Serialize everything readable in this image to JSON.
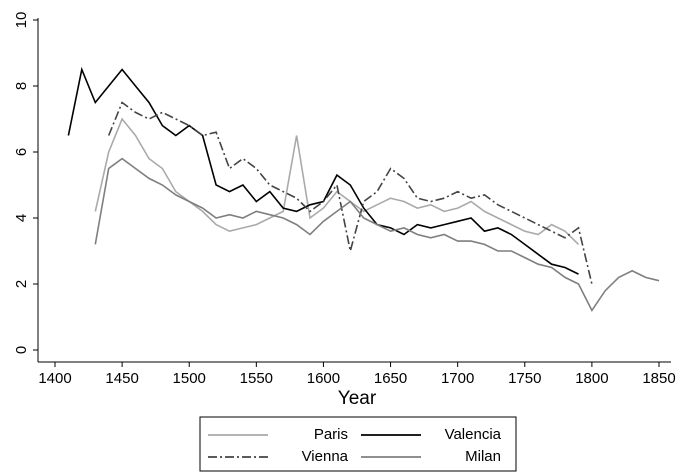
{
  "chart_data": {
    "type": "line",
    "x_label": "Year",
    "x": [
      1410,
      1420,
      1430,
      1440,
      1450,
      1460,
      1470,
      1480,
      1490,
      1500,
      1510,
      1520,
      1530,
      1540,
      1550,
      1560,
      1570,
      1580,
      1590,
      1600,
      1610,
      1620,
      1630,
      1640,
      1650,
      1660,
      1670,
      1680,
      1690,
      1700,
      1710,
      1720,
      1730,
      1740,
      1750,
      1760,
      1770,
      1780,
      1790,
      1800,
      1810,
      1820,
      1830,
      1840,
      1850
    ],
    "series": [
      {
        "name": "Paris",
        "color": "#aaaaaa",
        "dash": "solid",
        "values": [
          null,
          null,
          4.2,
          6,
          7,
          6.5,
          5.8,
          5.5,
          4.8,
          4.5,
          4.2,
          3.8,
          3.6,
          3.7,
          3.8,
          4,
          4.2,
          6.5,
          4,
          4.3,
          4.8,
          4.5,
          4.2,
          4.4,
          4.6,
          4.5,
          4.3,
          4.4,
          4.2,
          4.3,
          4.5,
          4.2,
          4,
          3.8,
          3.6,
          3.5,
          3.8,
          3.6,
          3.2,
          null,
          null,
          null,
          null,
          null,
          null
        ]
      },
      {
        "name": "Valencia",
        "color": "#000000",
        "dash": "solid",
        "values": [
          6.5,
          8.5,
          7.5,
          8,
          8.5,
          8,
          7.5,
          6.8,
          6.5,
          6.8,
          6.5,
          5,
          4.8,
          5,
          4.5,
          4.8,
          4.3,
          4.2,
          4.4,
          4.5,
          5.3,
          5,
          4.3,
          3.8,
          3.7,
          3.5,
          3.8,
          3.7,
          3.8,
          3.9,
          4,
          3.6,
          3.7,
          3.5,
          3.2,
          2.9,
          2.6,
          2.5,
          2.3,
          null,
          null,
          null,
          null,
          null,
          null
        ]
      },
      {
        "name": "Vienna",
        "color": "#444444",
        "dash": "dashdot",
        "values": [
          null,
          null,
          null,
          6.5,
          7.5,
          7.2,
          7,
          7.2,
          7,
          6.8,
          6.5,
          6.6,
          5.5,
          5.8,
          5.5,
          5,
          4.8,
          4.6,
          4.2,
          4.5,
          5,
          3,
          4.5,
          4.8,
          5.5,
          5.2,
          4.6,
          4.5,
          4.6,
          4.8,
          4.6,
          4.7,
          4.4,
          4.2,
          4,
          3.8,
          3.6,
          3.4,
          3.7,
          2,
          null,
          null,
          null,
          null,
          null
        ]
      },
      {
        "name": "Milan",
        "color": "#7f7f7f",
        "dash": "solid",
        "values": [
          null,
          null,
          3.2,
          5.5,
          5.8,
          5.5,
          5.2,
          5,
          4.7,
          4.5,
          4.3,
          4,
          4.1,
          4,
          4.2,
          4.1,
          4,
          3.8,
          3.5,
          3.9,
          4.2,
          4.5,
          4,
          3.8,
          3.6,
          3.7,
          3.5,
          3.4,
          3.5,
          3.3,
          3.3,
          3.2,
          3,
          3,
          2.8,
          2.6,
          2.5,
          2.2,
          2,
          1.2,
          1.8,
          2.2,
          2.4,
          2.2,
          2.1
        ]
      }
    ],
    "xlim": [
      1400,
      1850
    ],
    "xticks": [
      1400,
      1450,
      1500,
      1550,
      1600,
      1650,
      1700,
      1750,
      1800,
      1850
    ],
    "ylim": [
      0,
      10
    ],
    "yticks": [
      0,
      2,
      4,
      6,
      8,
      10
    ],
    "grid": false,
    "legend": "bottom"
  }
}
